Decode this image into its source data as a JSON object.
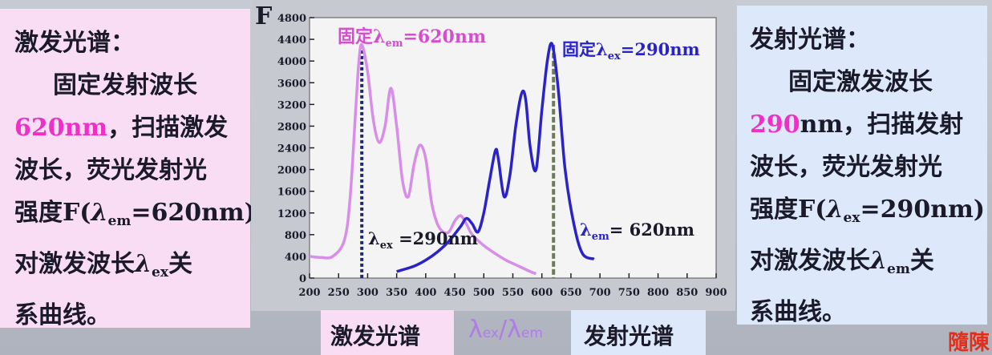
{
  "left_panel": {
    "title": "激发光谱：",
    "line1": "固定发射波长",
    "line2_hl": "620nm",
    "line2_rest": "，扫描激发",
    "line3": "波长，荧光发射光",
    "line4_a": "强度F(",
    "line4_lambda": "λ",
    "line4_sub": "em",
    "line4_b": "=620nm)",
    "line5_a": "对激发波长",
    "line5_lambda": "λ",
    "line5_sub": "ex",
    "line5_b": "关",
    "line6": "系曲线。"
  },
  "right_panel": {
    "title": "发射光谱：",
    "line1": "固定激发波长",
    "line2_hl": "290",
    "line2_rest": "nm，扫描发射",
    "line3": "波长，荧光发射光",
    "line4_a": "强度F(",
    "line4_lambda": "λ",
    "line4_sub": "ex",
    "line4_b": "=290nm)",
    "line5_a": "对激发波长",
    "line5_lambda": "λ",
    "line5_sub": "em",
    "line5_b": "关",
    "line6": "系曲线。"
  },
  "chart_annotations": {
    "ylabel": "F",
    "fix_em_a": "固定λ",
    "fix_em_sub": "em",
    "fix_em_b": "=620nm",
    "fix_ex_a": "固定λ",
    "fix_ex_sub": "ex",
    "fix_ex_b": "=290nm",
    "lambda_ex_a": "λ",
    "lambda_ex_sub": "ex",
    "lambda_ex_b": " =290nm",
    "lambda_em_a": "λ",
    "lambda_em_sub": "em",
    "lambda_em_b": "= 620nm"
  },
  "bottom_labels": {
    "excitation": "激发光谱",
    "lambda_a": "λ",
    "lambda_a_sub": "ex",
    "slash": "/",
    "lambda_b": "λ",
    "lambda_b_sub": "em",
    "emission": "发射光谱"
  },
  "stamp": "隨陳",
  "colors": {
    "excitation_curve": "#d88ee8",
    "emission_curve": "#2a23c8",
    "marker_excitation": "#1d2a66",
    "marker_emission": "#6e7b5a",
    "highlight": "#ee30c8"
  },
  "chart_data": {
    "type": "line",
    "xlabel": "",
    "ylabel": "F",
    "xlim": [
      200,
      900
    ],
    "ylim": [
      0,
      4800
    ],
    "xticks": [
      200,
      250,
      300,
      350,
      400,
      450,
      500,
      550,
      600,
      650,
      700,
      750,
      800,
      850,
      900
    ],
    "yticks": [
      0,
      400,
      800,
      1200,
      1600,
      2000,
      2400,
      2800,
      3200,
      3600,
      4000,
      4400,
      4800
    ],
    "grid": false,
    "series": [
      {
        "name": "",
        "color": "#d88ee8",
        "x": [
          200,
          220,
          240,
          260,
          270,
          280,
          285,
          290,
          300,
          310,
          320,
          330,
          340,
          350,
          360,
          370,
          380,
          390,
          400,
          410,
          420,
          430,
          440,
          450,
          460,
          470,
          480,
          500,
          520,
          540,
          560,
          580,
          590
        ],
        "y": [
          400,
          380,
          400,
          700,
          1500,
          3200,
          4000,
          4300,
          3800,
          2900,
          2500,
          2800,
          3500,
          2800,
          1800,
          1500,
          2100,
          2450,
          2200,
          1400,
          1000,
          850,
          850,
          1050,
          1150,
          1000,
          800,
          600,
          450,
          320,
          220,
          120,
          80
        ]
      },
      {
        "name": "",
        "color": "#2a23c8",
        "x": [
          350,
          380,
          400,
          420,
          440,
          460,
          470,
          480,
          490,
          500,
          510,
          520,
          525,
          535,
          545,
          555,
          565,
          572,
          580,
          590,
          600,
          610,
          618,
          628,
          640,
          655,
          670,
          690
        ],
        "y": [
          120,
          220,
          330,
          480,
          680,
          950,
          1100,
          1000,
          850,
          1200,
          1800,
          2350,
          2200,
          1500,
          1900,
          2800,
          3400,
          3300,
          2400,
          2000,
          3100,
          4050,
          4300,
          3500,
          2000,
          1000,
          450,
          350
        ]
      }
    ],
    "markers": [
      {
        "x": 290,
        "style": "dotted",
        "color": "#1d2a66"
      },
      {
        "x": 620,
        "style": "dashed",
        "color": "#6e7b5a"
      }
    ]
  }
}
